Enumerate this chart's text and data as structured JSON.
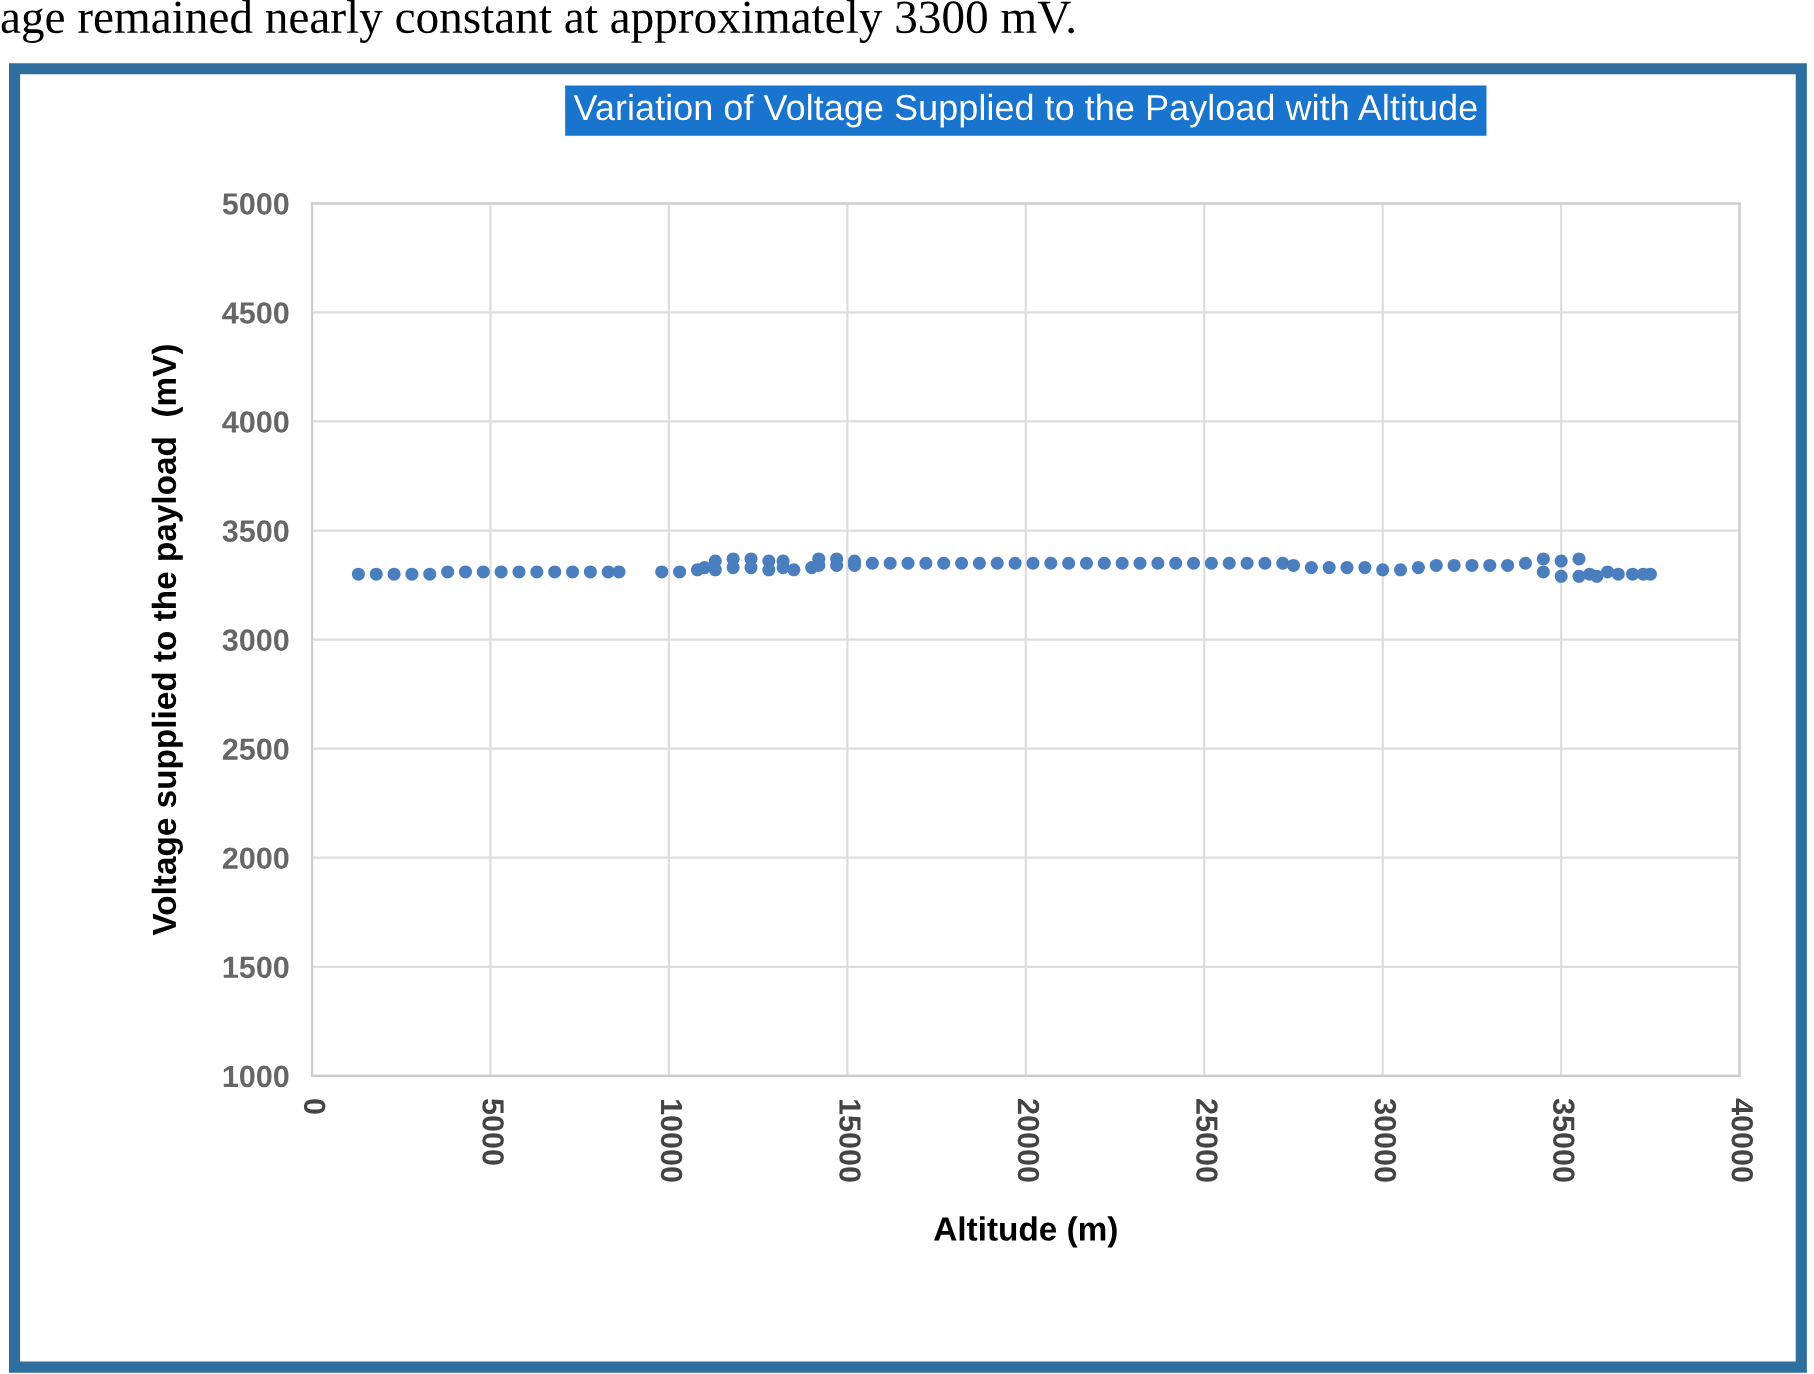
{
  "chart_data": {
    "type": "scatter",
    "title": "Variation of Voltage Supplied to the Payload with Altitude",
    "xlabel": "Altitude (m)",
    "ylabel": "Voltage supplied to the payload  (mV)",
    "annotations": [
      "age remained nearly constant at approximately 3300 mV."
    ],
    "series": [
      {
        "color": "#4a7ebf",
        "x": [
          1300,
          1800,
          2300,
          2800,
          3300,
          3800,
          4300,
          4800,
          5300,
          5800,
          6300,
          6800,
          7300,
          7800,
          8300,
          8600,
          9800,
          10300,
          10800,
          11000,
          11300,
          11300,
          11800,
          11800,
          12300,
          12300,
          12800,
          12800,
          13200,
          13200,
          13500,
          14000,
          14200,
          14200,
          14700,
          14700,
          15200,
          15200,
          15700,
          16200,
          16700,
          17200,
          17700,
          18200,
          18700,
          19200,
          19700,
          20200,
          20700,
          21200,
          21700,
          22200,
          22700,
          23200,
          23700,
          24200,
          24700,
          25200,
          25700,
          26200,
          26700,
          27200,
          27500,
          28000,
          28500,
          29000,
          29500,
          30000,
          30500,
          31000,
          31500,
          32000,
          32500,
          33000,
          33500,
          34000,
          34500,
          34500,
          35000,
          35000,
          35500,
          35500,
          35800,
          36000,
          36300,
          36600,
          37000,
          37300,
          37500
        ],
        "values": [
          3300,
          3300,
          3300,
          3300,
          3300,
          3310,
          3310,
          3310,
          3310,
          3310,
          3310,
          3310,
          3310,
          3310,
          3310,
          3310,
          3310,
          3310,
          3320,
          3330,
          3360,
          3320,
          3370,
          3330,
          3370,
          3330,
          3360,
          3320,
          3360,
          3330,
          3320,
          3330,
          3370,
          3340,
          3370,
          3340,
          3360,
          3340,
          3350,
          3350,
          3350,
          3350,
          3350,
          3350,
          3350,
          3350,
          3350,
          3350,
          3350,
          3350,
          3350,
          3350,
          3350,
          3350,
          3350,
          3350,
          3350,
          3350,
          3350,
          3350,
          3350,
          3350,
          3340,
          3330,
          3330,
          3330,
          3330,
          3320,
          3320,
          3330,
          3340,
          3340,
          3340,
          3340,
          3340,
          3350,
          3370,
          3310,
          3360,
          3290,
          3370,
          3290,
          3300,
          3290,
          3310,
          3300,
          3300,
          3300,
          3300
        ]
      }
    ],
    "xlim": [
      0,
      40000
    ],
    "xticks": [
      0,
      5000,
      10000,
      15000,
      20000,
      25000,
      30000,
      35000,
      40000
    ],
    "ylim": [
      1000,
      5000
    ],
    "yticks": [
      1000,
      1500,
      2000,
      2500,
      3000,
      3500,
      4000,
      4500,
      5000
    ],
    "grid": true,
    "marker": "circle",
    "legend": false
  }
}
